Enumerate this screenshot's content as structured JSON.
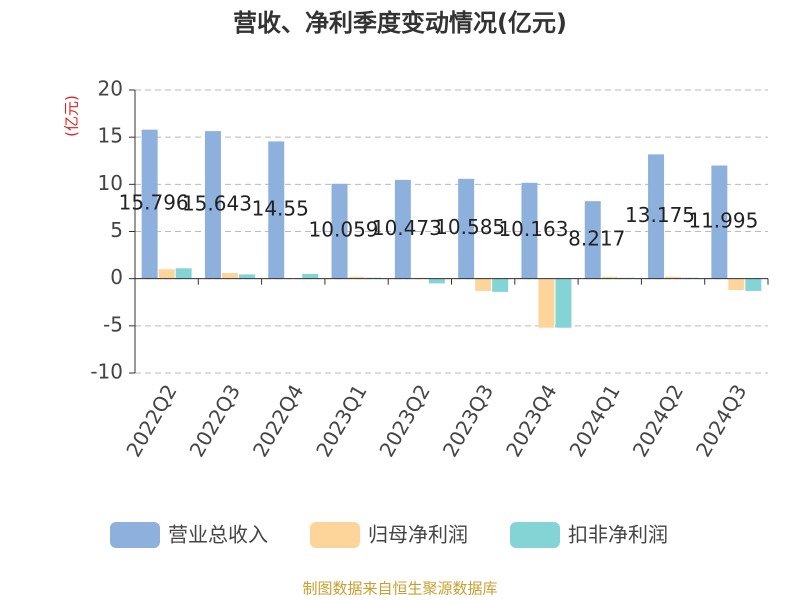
{
  "chart_data": {
    "type": "bar",
    "title": "营收、净利季度变动情况(亿元)",
    "y_label": "(亿元)",
    "source": "制图数据来自恒生聚源数据库",
    "categories": [
      "2022Q2",
      "2022Q3",
      "2022Q4",
      "2023Q1",
      "2023Q2",
      "2023Q3",
      "2023Q4",
      "2024Q1",
      "2024Q2",
      "2024Q3"
    ],
    "series": [
      {
        "name": "营业总收入",
        "color": "#8eb0dc",
        "values": [
          15.796,
          15.643,
          14.55,
          10.059,
          10.473,
          10.585,
          10.163,
          8.217,
          13.175,
          11.995
        ],
        "labels": true
      },
      {
        "name": "归母净利润",
        "color": "#fdd49a",
        "values": [
          1.0,
          0.6,
          0.05,
          0.2,
          0.1,
          -1.3,
          -5.2,
          0.2,
          0.2,
          -1.2
        ]
      },
      {
        "name": "扣非净利润",
        "color": "#84d4d6",
        "values": [
          1.1,
          0.45,
          0.5,
          0.1,
          -0.5,
          -1.4,
          -5.2,
          0.1,
          0.1,
          -1.3
        ]
      }
    ],
    "ylim": [
      -10,
      20
    ],
    "yticks": [
      -10,
      -5,
      0,
      5,
      10,
      15,
      20
    ],
    "grid": true
  }
}
